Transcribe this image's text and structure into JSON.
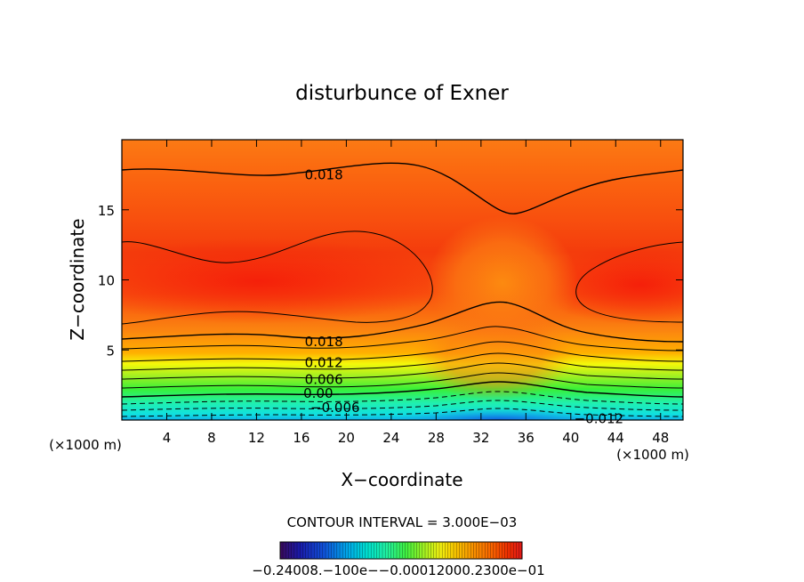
{
  "chart_data": {
    "type": "heatmap",
    "title": "disturbunce of Exner",
    "xlabel": "X−coordinate",
    "ylabel": "Z−coordinate",
    "x_unit": "(×1000 m)",
    "x_unit_right": "(×1000 m)",
    "xlim": [
      0,
      50
    ],
    "ylim": [
      0,
      20
    ],
    "x_ticks": [
      4,
      8,
      12,
      16,
      20,
      24,
      28,
      32,
      36,
      40,
      44,
      48
    ],
    "y_ticks": [
      5,
      10,
      15
    ],
    "contour_interval_text": "CONTOUR INTERVAL = 3.000E−03",
    "contour_labels": [
      {
        "text": "0.018",
        "x": 18,
        "z": 17.5
      },
      {
        "text": "0.018",
        "x": 18,
        "z": 5.6
      },
      {
        "text": "0.012",
        "x": 18,
        "z": 4.1
      },
      {
        "text": "0.006",
        "x": 18,
        "z": 2.9
      },
      {
        "text": "0.00",
        "x": 17.5,
        "z": 1.9
      },
      {
        "text": "−0.006",
        "x": 19,
        "z": 0.9
      },
      {
        "text": "−0.012",
        "x": 42.5,
        "z": 0.1
      }
    ],
    "colorbar": {
      "range": [
        -0.024,
        0.024
      ],
      "tick_text": "−0.24008.−100e−−0.00012000.2300e−01",
      "colors": [
        "#3a0a5a",
        "#1a1aa8",
        "#1050d8",
        "#00a8e8",
        "#00e0d0",
        "#20f0a0",
        "#40f040",
        "#a8f020",
        "#f0f010",
        "#f8c800",
        "#f89000",
        "#f86000",
        "#f03000",
        "#e01818"
      ]
    },
    "field_colors": {
      "high": "#f52a0c",
      "upper": "#fb6a10",
      "mid": "#ffb000",
      "yellow": "#f4f80a",
      "green": "#38f038",
      "cyan": "#10e0e0",
      "low": "#1070e0"
    }
  }
}
